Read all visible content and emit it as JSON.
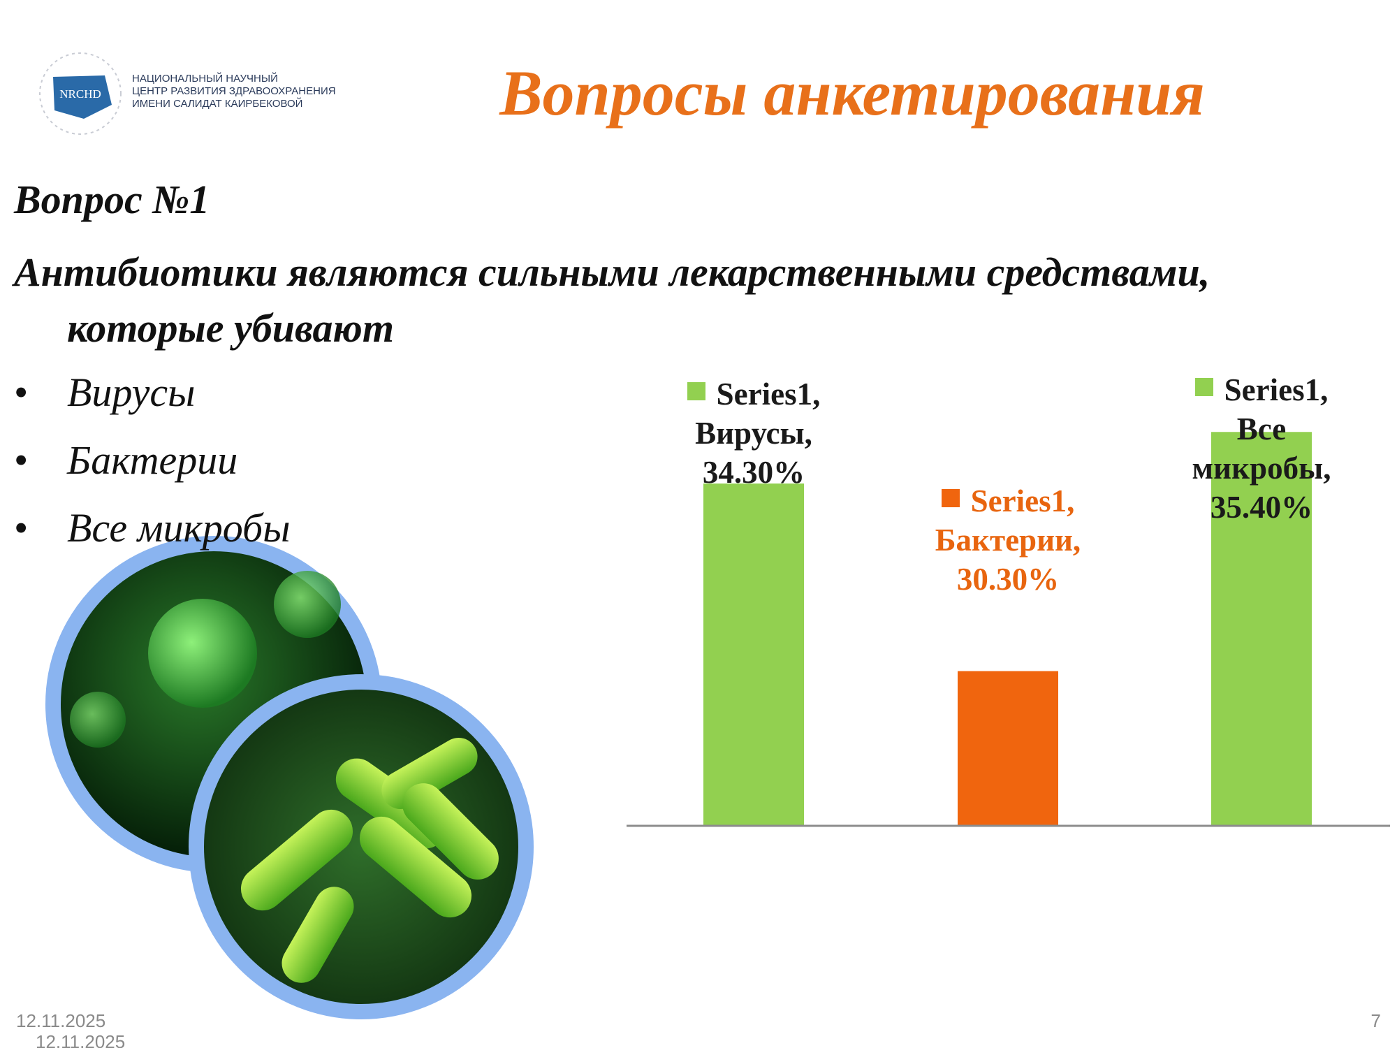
{
  "logo": {
    "mark": "NRCHD",
    "lines": [
      "НАЦИОНАЛЬНЫЙ НАУЧНЫЙ",
      "ЦЕНТР РАЗВИТИЯ ЗДРАВООХРАНЕНИЯ",
      "ИМЕНИ САЛИДАТ КАИРБЕКОВОЙ"
    ]
  },
  "header": {
    "title": "Вопросы анкетирования"
  },
  "question": {
    "number": "Вопрос №1",
    "text": "Антибиотики являются сильными лекарственными средствами, которые убивают",
    "options": [
      "Вирусы",
      "Бактерии",
      "Все микробы"
    ]
  },
  "chart_data": {
    "type": "bar",
    "categories": [
      "Вирусы",
      "Бактерии",
      "Все микробы"
    ],
    "series": [
      {
        "name": "Series1",
        "values": [
          34.3,
          30.3,
          35.4
        ],
        "value_labels": [
          "Series1, Вирусы, 34.30%",
          "Series1, Бактерии, 30.30%",
          "Series1, Все микробы, 35.40%"
        ],
        "colors": [
          "#92d050",
          "#f0650e",
          "#92d050"
        ],
        "label_colors": [
          "#1a1a1a",
          "#e8650f",
          "#1a1a1a"
        ]
      }
    ],
    "ylim": [
      27,
      36
    ],
    "grid": false
  },
  "footer": {
    "dates": [
      "12.11.2025",
      "12.11.2025"
    ],
    "page": "7"
  }
}
